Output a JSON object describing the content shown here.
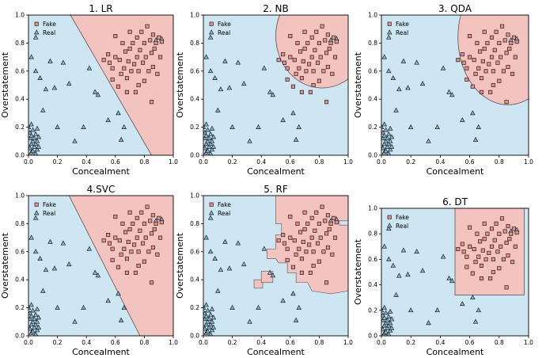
{
  "figure_name": "classifier-decision-boundaries",
  "chart_data": [
    {
      "type": "scatter",
      "id": "lr",
      "title": "1. LR",
      "xlabel": "Concealment",
      "ylabel": "Overstatement",
      "xlim": [
        0,
        1
      ],
      "ylim": [
        0,
        1
      ],
      "legend": [
        "Fake",
        "Real"
      ],
      "boundary": "line",
      "line_top_x": 0.29,
      "line_bottom_x": 0.85
    },
    {
      "type": "scatter",
      "id": "nb",
      "title": "2. NB",
      "xlabel": "Concealment",
      "ylabel": "Overstatement",
      "xlim": [
        0,
        1
      ],
      "ylim": [
        0,
        1
      ],
      "legend": [
        "Fake",
        "Real"
      ],
      "boundary": "ellipse",
      "cx": 0.82,
      "cy": 0.85,
      "rx": 0.32,
      "ry": 0.37
    },
    {
      "type": "scatter",
      "id": "qda",
      "title": "3. QDA",
      "xlabel": "Concealment",
      "ylabel": "Overstatement",
      "xlim": [
        0,
        1
      ],
      "ylim": [
        0,
        1
      ],
      "legend": [
        "Fake",
        "Real"
      ],
      "boundary": "ellipse",
      "cx": 0.86,
      "cy": 0.84,
      "rx": 0.34,
      "ry": 0.48
    },
    {
      "type": "scatter",
      "id": "svc",
      "title": "4.SVC",
      "xlabel": "Concealment",
      "ylabel": "Overstatement",
      "xlim": [
        0,
        1
      ],
      "ylim": [
        0,
        1
      ],
      "legend": [
        "Fake",
        "Real"
      ],
      "boundary": "line",
      "line_top_x": 0.28,
      "line_bottom_x": 0.77
    },
    {
      "type": "scatter",
      "id": "rf",
      "title": "5. RF",
      "xlabel": "Concealment",
      "ylabel": "Overstatement",
      "xlim": [
        0,
        1
      ],
      "ylim": [
        0,
        1
      ],
      "legend": [
        "Fake",
        "Real"
      ],
      "boundary": "polygon",
      "polygon": [
        [
          0.5,
          1
        ],
        [
          1,
          1
        ],
        [
          1,
          0.82
        ],
        [
          0.94,
          0.82
        ],
        [
          0.94,
          0.79
        ],
        [
          1,
          0.79
        ],
        [
          1,
          0.32
        ],
        [
          0.88,
          0.3
        ],
        [
          0.75,
          0.32
        ],
        [
          0.72,
          0.38
        ],
        [
          0.64,
          0.38
        ],
        [
          0.64,
          0.45
        ],
        [
          0.58,
          0.45
        ],
        [
          0.58,
          0.52
        ],
        [
          0.52,
          0.52
        ],
        [
          0.5,
          0.55
        ],
        [
          0.44,
          0.55
        ],
        [
          0.44,
          0.62
        ],
        [
          0.5,
          0.62
        ],
        [
          0.5,
          0.72
        ],
        [
          0.54,
          0.72
        ],
        [
          0.54,
          0.8
        ],
        [
          0.5,
          0.8
        ]
      ],
      "extra_boxes": [
        [
          0.35,
          0.34,
          0.41,
          0.4
        ],
        [
          0.4,
          0.38,
          0.48,
          0.46
        ]
      ]
    },
    {
      "type": "scatter",
      "id": "dt",
      "title": "6. DT",
      "xlabel": "Concealment",
      "ylabel": "Overstatement",
      "xlim": [
        0,
        1
      ],
      "ylim": [
        0,
        1
      ],
      "legend": [
        "Fake",
        "Real"
      ],
      "boundary": "rect",
      "x0": 0.5,
      "x1": 0.97,
      "y0": 0.32,
      "y1": 1.0
    }
  ],
  "points": {
    "fake": [
      [
        0.52,
        0.68
      ],
      [
        0.55,
        0.72
      ],
      [
        0.56,
        0.66
      ],
      [
        0.58,
        0.62
      ],
      [
        0.6,
        0.85
      ],
      [
        0.6,
        0.7
      ],
      [
        0.62,
        0.49
      ],
      [
        0.63,
        0.68
      ],
      [
        0.65,
        0.8
      ],
      [
        0.66,
        0.62
      ],
      [
        0.67,
        0.74
      ],
      [
        0.68,
        0.55
      ],
      [
        0.69,
        0.67
      ],
      [
        0.7,
        0.88
      ],
      [
        0.71,
        0.6
      ],
      [
        0.72,
        0.8
      ],
      [
        0.73,
        0.65
      ],
      [
        0.74,
        0.45
      ],
      [
        0.75,
        0.84
      ],
      [
        0.75,
        0.7
      ],
      [
        0.76,
        0.6
      ],
      [
        0.77,
        0.75
      ],
      [
        0.78,
        0.88
      ],
      [
        0.79,
        0.66
      ],
      [
        0.8,
        0.53
      ],
      [
        0.8,
        0.8
      ],
      [
        0.81,
        0.7
      ],
      [
        0.82,
        0.92
      ],
      [
        0.83,
        0.6
      ],
      [
        0.84,
        0.82
      ],
      [
        0.85,
        0.73
      ],
      [
        0.85,
        0.38
      ],
      [
        0.86,
        0.63
      ],
      [
        0.86,
        0.86
      ],
      [
        0.87,
        0.76
      ],
      [
        0.88,
        0.8
      ],
      [
        0.89,
        0.58
      ],
      [
        0.9,
        0.84
      ],
      [
        0.91,
        0.7
      ],
      [
        0.92,
        0.81
      ],
      [
        0.68,
        0.45
      ],
      [
        0.64,
        0.58
      ],
      [
        0.58,
        0.54
      ],
      [
        0.76,
        0.5
      ],
      [
        0.7,
        0.76
      ]
    ],
    "real": [
      [
        0.0,
        0.2
      ],
      [
        0.01,
        0.05
      ],
      [
        0.01,
        0.12
      ],
      [
        0.01,
        0.16
      ],
      [
        0.02,
        0.02
      ],
      [
        0.02,
        0.08
      ],
      [
        0.02,
        0.14
      ],
      [
        0.02,
        0.22
      ],
      [
        0.03,
        0.03
      ],
      [
        0.03,
        0.1
      ],
      [
        0.03,
        0.18
      ],
      [
        0.04,
        0.06
      ],
      [
        0.04,
        0.12
      ],
      [
        0.05,
        0.01
      ],
      [
        0.05,
        0.08
      ],
      [
        0.05,
        0.15
      ],
      [
        0.06,
        0.04
      ],
      [
        0.06,
        0.1
      ],
      [
        0.06,
        0.19
      ],
      [
        0.07,
        0.13
      ],
      [
        0.07,
        0.06
      ],
      [
        0.02,
        0.7
      ],
      [
        0.05,
        0.6
      ],
      [
        0.05,
        0.84
      ],
      [
        0.08,
        0.55
      ],
      [
        0.1,
        0.32
      ],
      [
        0.12,
        0.47
      ],
      [
        0.15,
        0.67
      ],
      [
        0.18,
        0.48
      ],
      [
        0.2,
        0.2
      ],
      [
        0.24,
        0.66
      ],
      [
        0.28,
        0.51
      ],
      [
        0.32,
        0.1
      ],
      [
        0.38,
        0.2
      ],
      [
        0.42,
        0.62
      ],
      [
        0.46,
        0.45
      ],
      [
        0.48,
        0.43
      ],
      [
        0.55,
        0.25
      ],
      [
        0.62,
        0.3
      ],
      [
        0.64,
        0.11
      ],
      [
        0.66,
        0.2
      ],
      [
        0.88,
        0.82
      ],
      [
        0.92,
        0.83
      ]
    ]
  }
}
